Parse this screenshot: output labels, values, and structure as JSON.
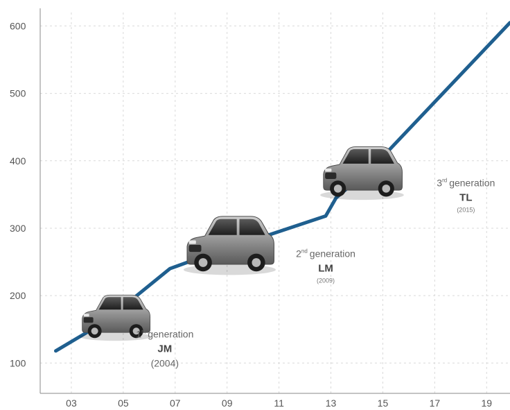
{
  "chart_data": {
    "type": "line",
    "title": "",
    "xlabel": "",
    "ylabel": "",
    "xlim": [
      2001.8,
      2019.9
    ],
    "ylim": [
      55,
      620
    ],
    "y_ticks": [
      100,
      200,
      300,
      400,
      500,
      600
    ],
    "x_ticks": [
      2003,
      2005,
      2007,
      2009,
      2011,
      2013,
      2015,
      2017,
      2019
    ],
    "x_tick_labels": [
      "03",
      "05",
      "07",
      "09",
      "11",
      "13",
      "15",
      "17",
      "19"
    ],
    "grid": true,
    "colors": {
      "line": "#1f5f8f",
      "grid": "#d9d9d9",
      "axis": "#888888"
    },
    "series": [
      {
        "x": [
          2002.4,
          2003.8,
          2005.2,
          2006.8,
          2008.6,
          2010.6,
          2012.8,
          2013.2,
          2014.8,
          2019.9
        ],
        "values": [
          118,
          150,
          190,
          240,
          265,
          290,
          318,
          345,
          398,
          605
        ]
      }
    ],
    "annotations": [
      {
        "sup": "st",
        "line": "1",
        "word": "generation",
        "code": "JM",
        "year": "(2004)",
        "year_style": "large",
        "x": 2006.6,
        "y": 138,
        "car": {
          "x": 2004.7,
          "y": 170,
          "w": 100,
          "scale": 1.0
        }
      },
      {
        "sup": "nd",
        "line": "2",
        "word": "generation",
        "code": "LM",
        "year": "(2009)",
        "year_style": "small",
        "x": 2012.8,
        "y": 257,
        "car": {
          "x": 2009.1,
          "y": 278,
          "w": 128,
          "scale": 1.0
        }
      },
      {
        "sup": "rd",
        "line": "3",
        "word": "generation",
        "code": "TL",
        "year": "(2015)",
        "year_style": "small",
        "x": 2018.2,
        "y": 362,
        "car": {
          "x": 2014.2,
          "y": 385,
          "w": 116,
          "scale": 1.0
        }
      }
    ]
  }
}
